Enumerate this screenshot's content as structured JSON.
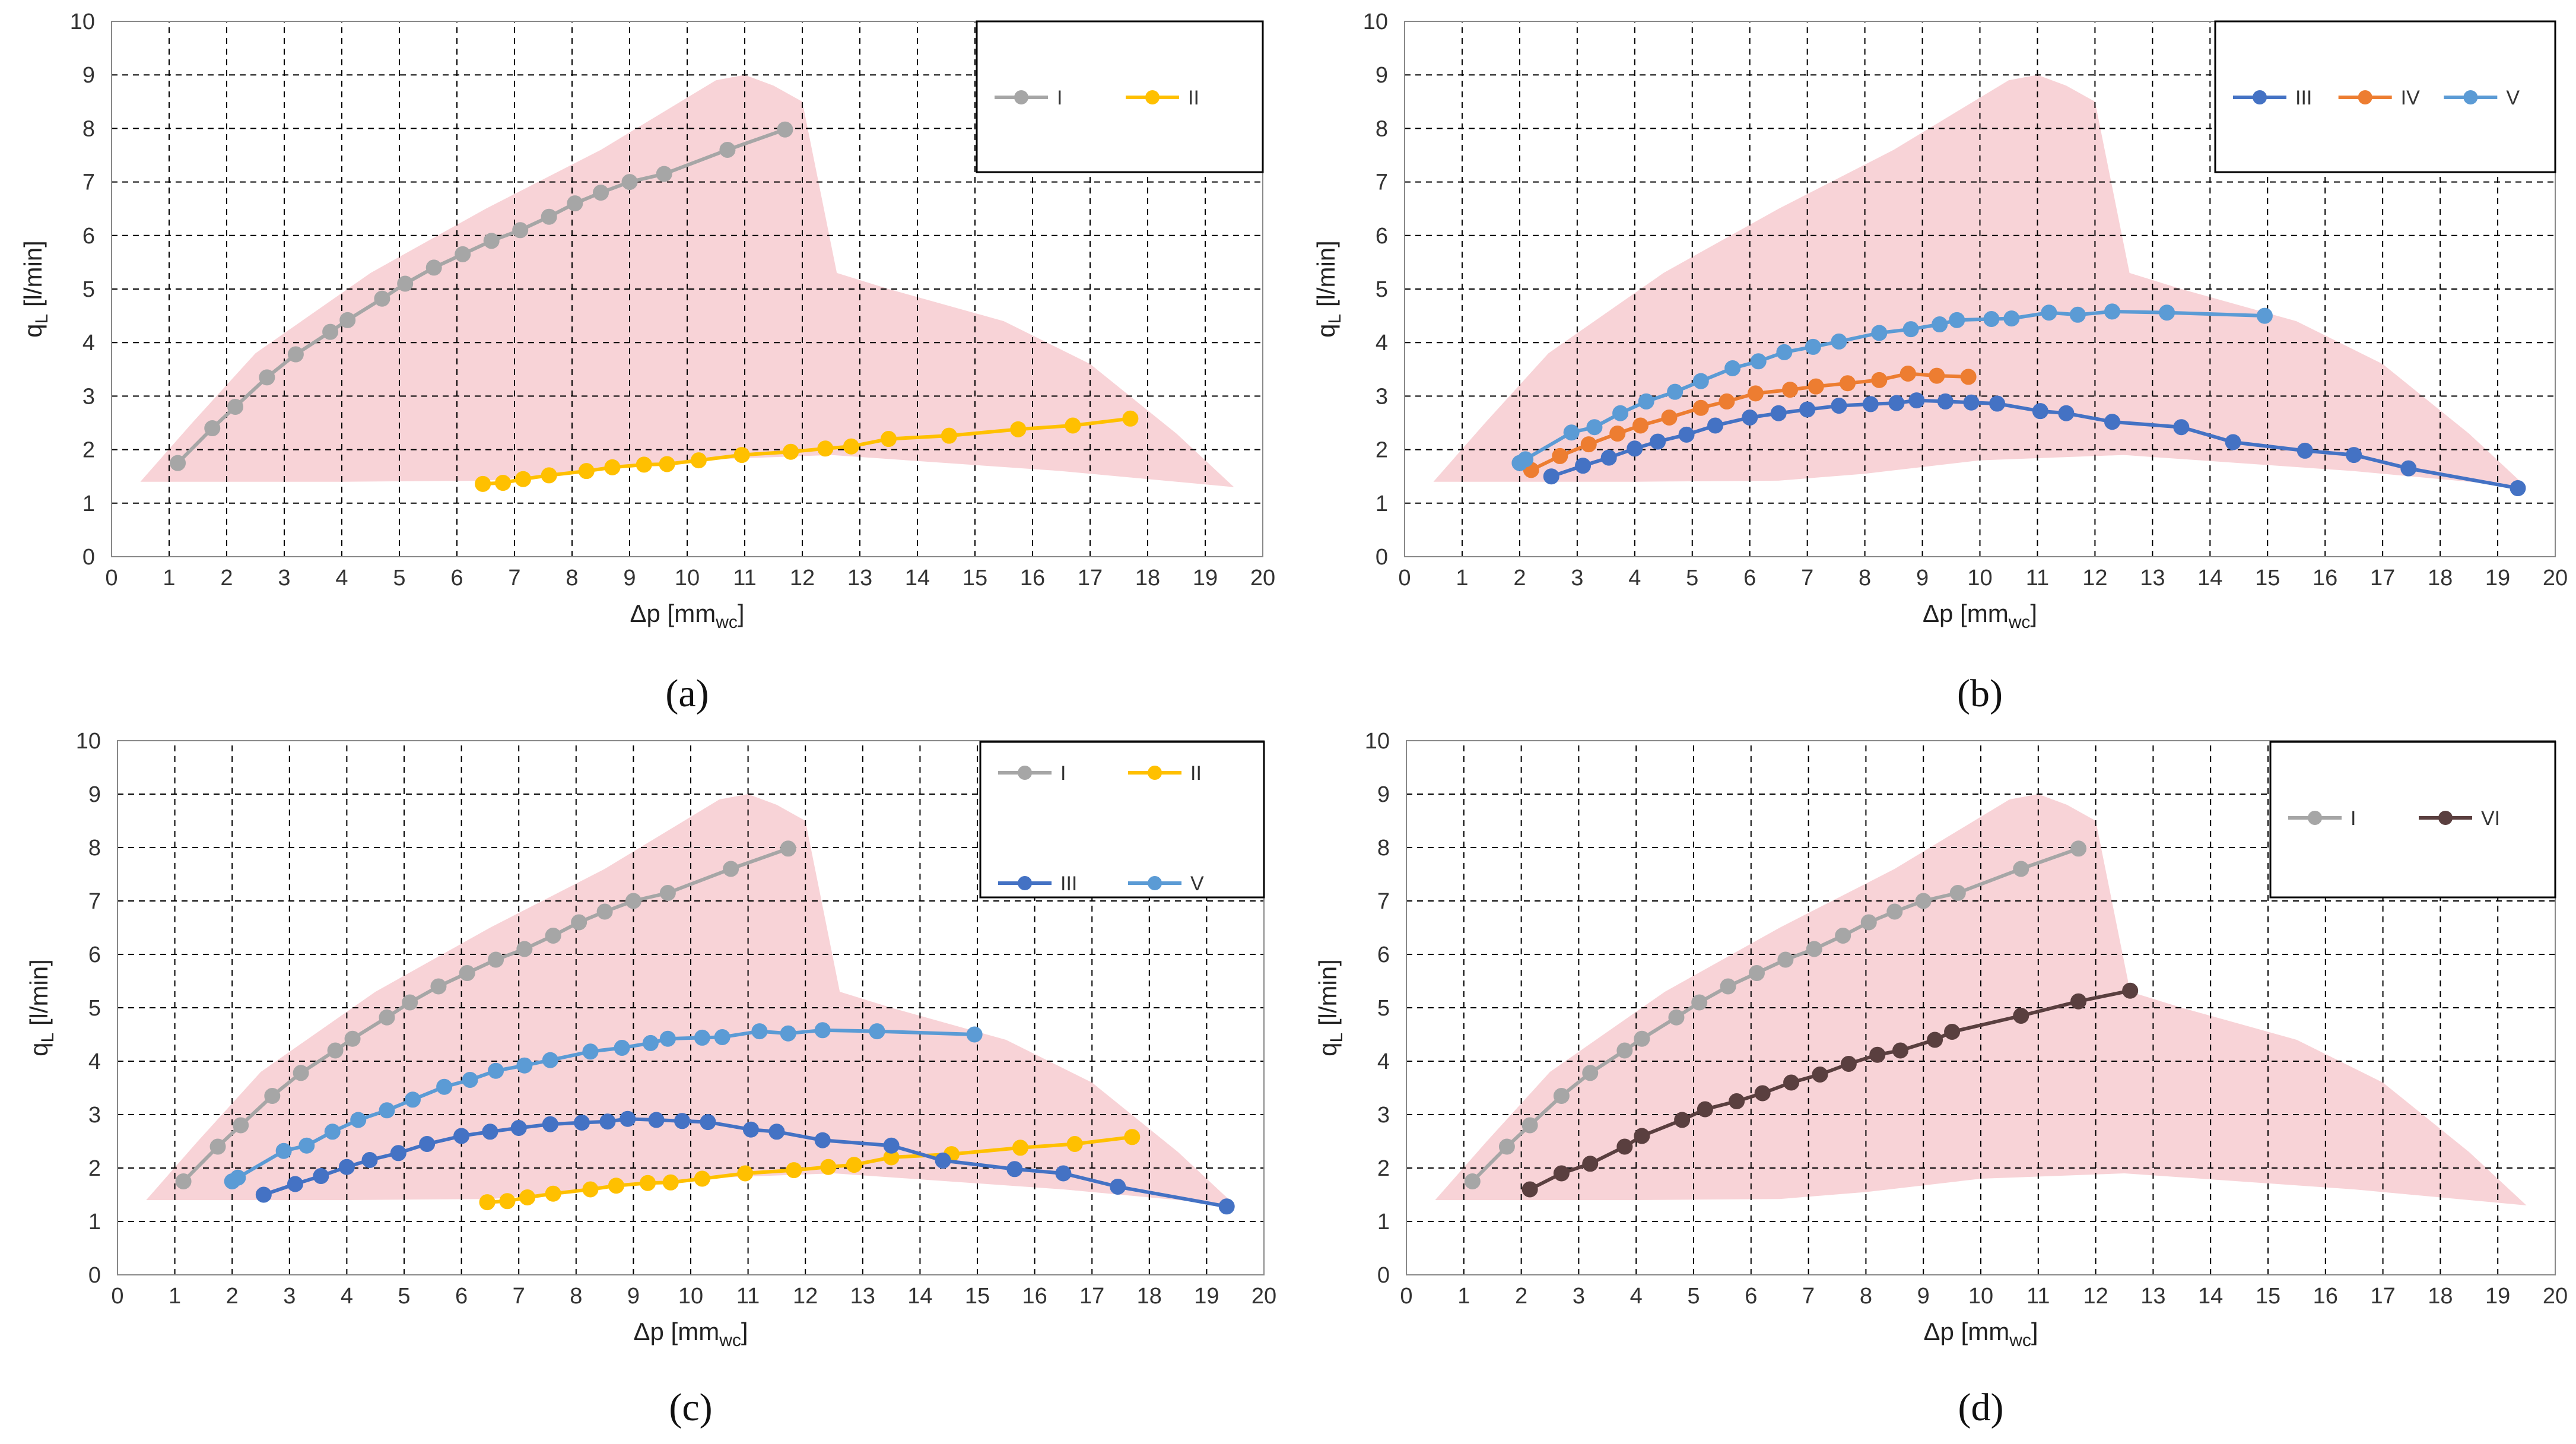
{
  "envelope": {
    "color": "#f8d3d7",
    "points": [
      [
        0.5,
        1.4
      ],
      [
        1.4,
        2.5
      ],
      [
        2.5,
        3.8
      ],
      [
        4.5,
        5.3
      ],
      [
        6.5,
        6.5
      ],
      [
        8.5,
        7.6
      ],
      [
        10.5,
        8.9
      ],
      [
        11.0,
        9.0
      ],
      [
        11.5,
        8.8
      ],
      [
        12.0,
        8.5
      ],
      [
        12.6,
        5.3
      ],
      [
        13.5,
        5.0
      ],
      [
        15.5,
        4.4
      ],
      [
        17.0,
        3.6
      ],
      [
        18.5,
        2.3
      ],
      [
        19.5,
        1.3
      ],
      [
        16.5,
        1.6
      ],
      [
        12.5,
        1.9
      ],
      [
        10.0,
        1.8
      ],
      [
        8.0,
        1.55
      ],
      [
        6.5,
        1.42
      ],
      [
        4.0,
        1.4
      ],
      [
        0.5,
        1.4
      ]
    ]
  },
  "series_styles": {
    "I": {
      "color": "#a6a6a6"
    },
    "II": {
      "color": "#ffc000"
    },
    "III": {
      "color": "#4472c4"
    },
    "IV": {
      "color": "#ed7d31"
    },
    "V": {
      "color": "#5b9bd5"
    },
    "VI": {
      "color": "#5a3f3f"
    }
  },
  "chart_data": [
    {
      "panel": "a",
      "panel_label": "(a)",
      "type": "line",
      "xlabel": "Δp [mm",
      "xlabel_sub": "wc",
      "xlabel_end": "]",
      "ylabel": "q",
      "ylabel_sub": "L",
      "ylabel_end": " [l/min]",
      "xlim": [
        0,
        20
      ],
      "ylim": [
        0,
        10
      ],
      "legend_position": "top-right",
      "series": [
        {
          "name": "I",
          "x": [
            1.15,
            1.75,
            2.15,
            2.7,
            3.2,
            3.8,
            4.1,
            4.7,
            5.1,
            5.6,
            6.1,
            6.6,
            7.1,
            7.6,
            8.05,
            8.5,
            9.0,
            9.6,
            10.7,
            11.7
          ],
          "y": [
            1.75,
            2.4,
            2.8,
            3.35,
            3.78,
            4.2,
            4.42,
            4.82,
            5.1,
            5.4,
            5.65,
            5.9,
            6.1,
            6.35,
            6.6,
            6.8,
            7.0,
            7.15,
            7.6,
            7.98
          ]
        },
        {
          "name": "II",
          "x": [
            6.45,
            6.8,
            7.15,
            7.6,
            8.25,
            8.7,
            9.25,
            9.65,
            10.2,
            10.95,
            11.8,
            12.4,
            12.85,
            13.5,
            14.55,
            15.75,
            16.7,
            17.7
          ],
          "y": [
            1.36,
            1.38,
            1.45,
            1.52,
            1.6,
            1.67,
            1.72,
            1.73,
            1.8,
            1.9,
            1.96,
            2.02,
            2.06,
            2.2,
            2.26,
            2.38,
            2.45,
            2.58
          ]
        }
      ]
    },
    {
      "panel": "b",
      "panel_label": "(b)",
      "type": "line",
      "xlabel": "Δp [mm",
      "xlabel_sub": "wc",
      "xlabel_end": "]",
      "ylabel": "q",
      "ylabel_sub": "L",
      "ylabel_end": " [l/min]",
      "xlim": [
        0,
        20
      ],
      "ylim": [
        0,
        10
      ],
      "legend_position": "top-right",
      "series": [
        {
          "name": "III",
          "x": [
            2.55,
            3.1,
            3.55,
            4.0,
            4.4,
            4.9,
            5.4,
            6.0,
            6.5,
            7.0,
            7.55,
            8.1,
            8.55,
            8.9,
            9.4,
            9.85,
            10.3,
            11.05,
            11.5,
            12.3,
            13.5,
            14.4,
            15.65,
            16.5,
            17.45,
            19.35
          ],
          "y": [
            1.5,
            1.7,
            1.85,
            2.02,
            2.15,
            2.28,
            2.45,
            2.6,
            2.68,
            2.75,
            2.82,
            2.85,
            2.87,
            2.92,
            2.9,
            2.88,
            2.86,
            2.72,
            2.68,
            2.52,
            2.42,
            2.14,
            1.98,
            1.9,
            1.65,
            1.28
          ]
        },
        {
          "name": "IV",
          "x": [
            2.2,
            2.7,
            3.2,
            3.7,
            4.1,
            4.6,
            5.15,
            5.6,
            6.1,
            6.7,
            7.15,
            7.7,
            8.25,
            8.75,
            9.25,
            9.8
          ],
          "y": [
            1.62,
            1.88,
            2.1,
            2.3,
            2.45,
            2.6,
            2.78,
            2.9,
            3.05,
            3.12,
            3.18,
            3.24,
            3.3,
            3.42,
            3.38,
            3.36
          ]
        },
        {
          "name": "V",
          "x": [
            2.0,
            2.1,
            2.9,
            3.3,
            3.75,
            4.2,
            4.7,
            5.15,
            5.7,
            6.15,
            6.6,
            7.1,
            7.55,
            8.25,
            8.8,
            9.3,
            9.6,
            10.2,
            10.55,
            11.2,
            11.7,
            12.3,
            13.25,
            14.95
          ],
          "y": [
            1.75,
            1.82,
            2.32,
            2.42,
            2.68,
            2.9,
            3.08,
            3.28,
            3.52,
            3.65,
            3.82,
            3.92,
            4.02,
            4.18,
            4.25,
            4.34,
            4.42,
            4.44,
            4.45,
            4.56,
            4.52,
            4.58,
            4.56,
            4.5
          ]
        }
      ]
    },
    {
      "panel": "c",
      "panel_label": "(c)",
      "type": "line",
      "xlabel": "Δp [mm",
      "xlabel_sub": "wc",
      "xlabel_end": "]",
      "ylabel": "q",
      "ylabel_sub": "L",
      "ylabel_end": " [l/min]",
      "xlim": [
        0,
        20
      ],
      "ylim": [
        0,
        10
      ],
      "legend_position": "top-right",
      "series": [
        {
          "name": "I",
          "x": [
            1.15,
            1.75,
            2.15,
            2.7,
            3.2,
            3.8,
            4.1,
            4.7,
            5.1,
            5.6,
            6.1,
            6.6,
            7.1,
            7.6,
            8.05,
            8.5,
            9.0,
            9.6,
            10.7,
            11.7
          ],
          "y": [
            1.75,
            2.4,
            2.8,
            3.35,
            3.78,
            4.2,
            4.42,
            4.82,
            5.1,
            5.4,
            5.65,
            5.9,
            6.1,
            6.35,
            6.6,
            6.8,
            7.0,
            7.15,
            7.6,
            7.98
          ]
        },
        {
          "name": "II",
          "x": [
            6.45,
            6.8,
            7.15,
            7.6,
            8.25,
            8.7,
            9.25,
            9.65,
            10.2,
            10.95,
            11.8,
            12.4,
            12.85,
            13.5,
            14.55,
            15.75,
            16.7,
            17.7
          ],
          "y": [
            1.36,
            1.38,
            1.45,
            1.52,
            1.6,
            1.67,
            1.72,
            1.73,
            1.8,
            1.9,
            1.96,
            2.02,
            2.06,
            2.2,
            2.26,
            2.38,
            2.45,
            2.58
          ]
        },
        {
          "name": "III",
          "x": [
            2.55,
            3.1,
            3.55,
            4.0,
            4.4,
            4.9,
            5.4,
            6.0,
            6.5,
            7.0,
            7.55,
            8.1,
            8.55,
            8.9,
            9.4,
            9.85,
            10.3,
            11.05,
            11.5,
            12.3,
            13.5,
            14.4,
            15.65,
            16.5,
            17.45,
            19.35
          ],
          "y": [
            1.5,
            1.7,
            1.85,
            2.02,
            2.15,
            2.28,
            2.45,
            2.6,
            2.68,
            2.75,
            2.82,
            2.85,
            2.87,
            2.92,
            2.9,
            2.88,
            2.86,
            2.72,
            2.68,
            2.52,
            2.42,
            2.14,
            1.98,
            1.9,
            1.65,
            1.28
          ]
        },
        {
          "name": "V",
          "x": [
            2.0,
            2.1,
            2.9,
            3.3,
            3.75,
            4.2,
            4.7,
            5.15,
            5.7,
            6.15,
            6.6,
            7.1,
            7.55,
            8.25,
            8.8,
            9.3,
            9.6,
            10.2,
            10.55,
            11.2,
            11.7,
            12.3,
            13.25,
            14.95
          ],
          "y": [
            1.75,
            1.82,
            2.32,
            2.42,
            2.68,
            2.9,
            3.08,
            3.28,
            3.52,
            3.65,
            3.82,
            3.92,
            4.02,
            4.18,
            4.25,
            4.34,
            4.42,
            4.44,
            4.45,
            4.56,
            4.52,
            4.58,
            4.56,
            4.5
          ]
        }
      ]
    },
    {
      "panel": "d",
      "panel_label": "(d)",
      "type": "line",
      "xlabel": "Δp [mm",
      "xlabel_sub": "wc",
      "xlabel_end": "]",
      "ylabel": "q",
      "ylabel_sub": "L",
      "ylabel_end": " [l/min]",
      "xlim": [
        0,
        20
      ],
      "ylim": [
        0,
        10
      ],
      "legend_position": "top-right",
      "series": [
        {
          "name": "I",
          "x": [
            1.15,
            1.75,
            2.15,
            2.7,
            3.2,
            3.8,
            4.1,
            4.7,
            5.1,
            5.6,
            6.1,
            6.6,
            7.1,
            7.6,
            8.05,
            8.5,
            9.0,
            9.6,
            10.7,
            11.7
          ],
          "y": [
            1.75,
            2.4,
            2.8,
            3.35,
            3.78,
            4.2,
            4.42,
            4.82,
            5.1,
            5.4,
            5.65,
            5.9,
            6.1,
            6.35,
            6.6,
            6.8,
            7.0,
            7.15,
            7.6,
            7.98
          ]
        },
        {
          "name": "VI",
          "x": [
            2.15,
            2.7,
            3.2,
            3.8,
            4.1,
            4.8,
            5.2,
            5.75,
            6.2,
            6.7,
            7.2,
            7.7,
            8.2,
            8.6,
            9.2,
            9.5,
            10.7,
            11.7,
            12.6
          ],
          "y": [
            1.6,
            1.9,
            2.08,
            2.4,
            2.6,
            2.9,
            3.1,
            3.25,
            3.4,
            3.6,
            3.75,
            3.95,
            4.12,
            4.2,
            4.4,
            4.55,
            4.85,
            5.12,
            5.32
          ]
        }
      ]
    }
  ]
}
